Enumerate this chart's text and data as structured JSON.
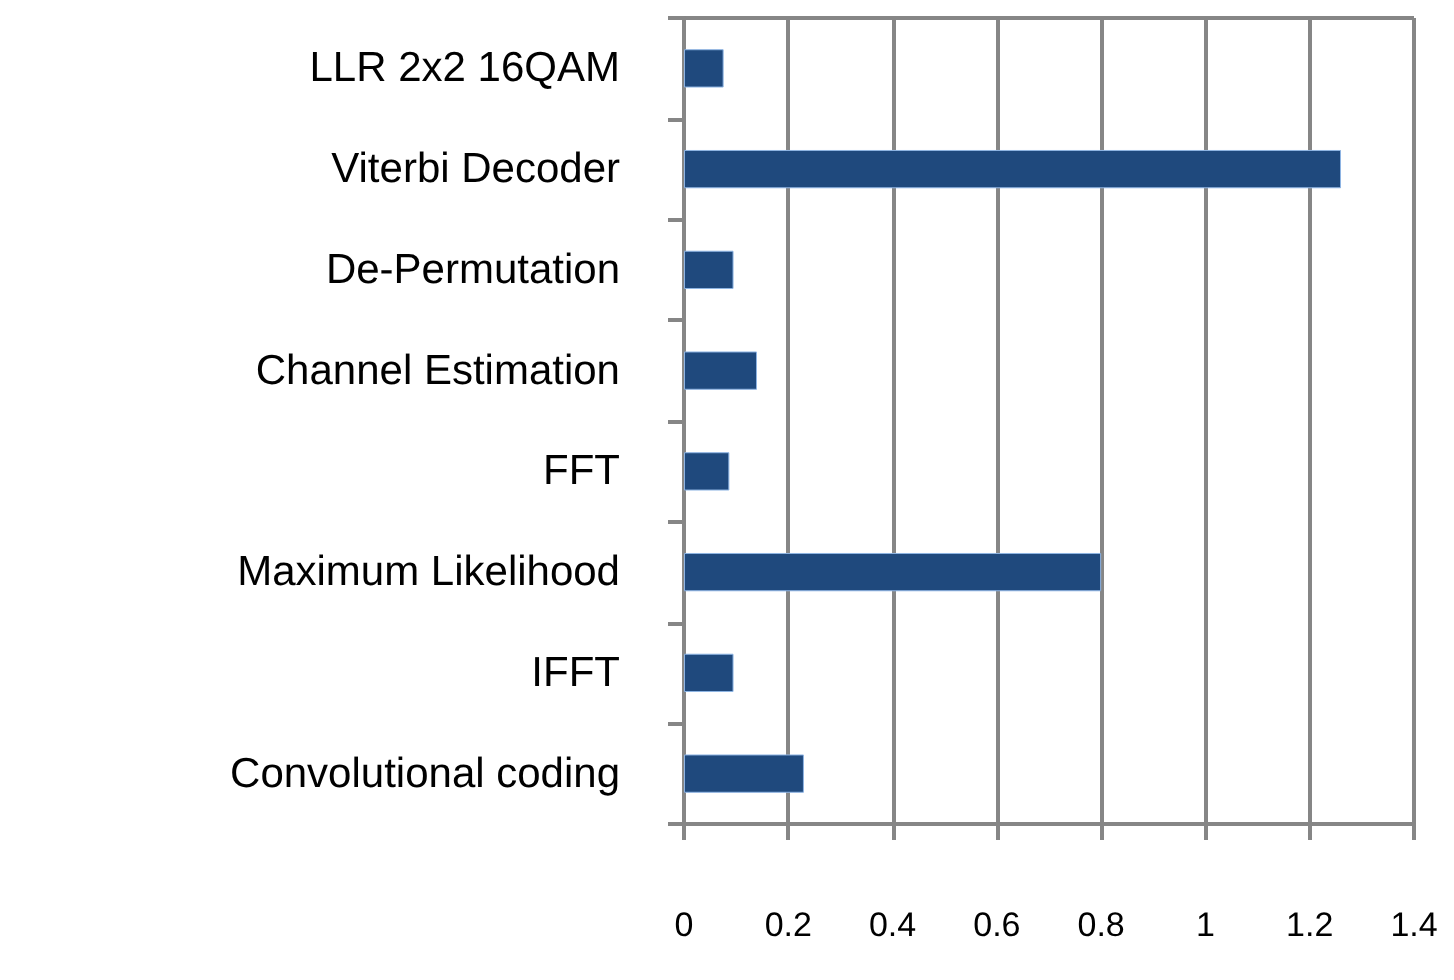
{
  "chart_data": {
    "type": "bar",
    "orientation": "horizontal",
    "categories": [
      "LLR 2x2 16QAM",
      "Viterbi Decoder",
      "De-Permutation",
      "Channel Estimation",
      "FFT",
      "Maximum Likelihood",
      "IFFT",
      "Convolutional coding"
    ],
    "values": [
      0.076,
      1.26,
      0.095,
      0.14,
      0.087,
      0.8,
      0.095,
      0.23
    ],
    "color": "#1f497d",
    "xlim": [
      0,
      1.4
    ],
    "xticks": [
      0,
      0.2,
      0.4,
      0.6,
      0.8,
      1,
      1.2,
      1.4
    ],
    "grid": "x"
  }
}
